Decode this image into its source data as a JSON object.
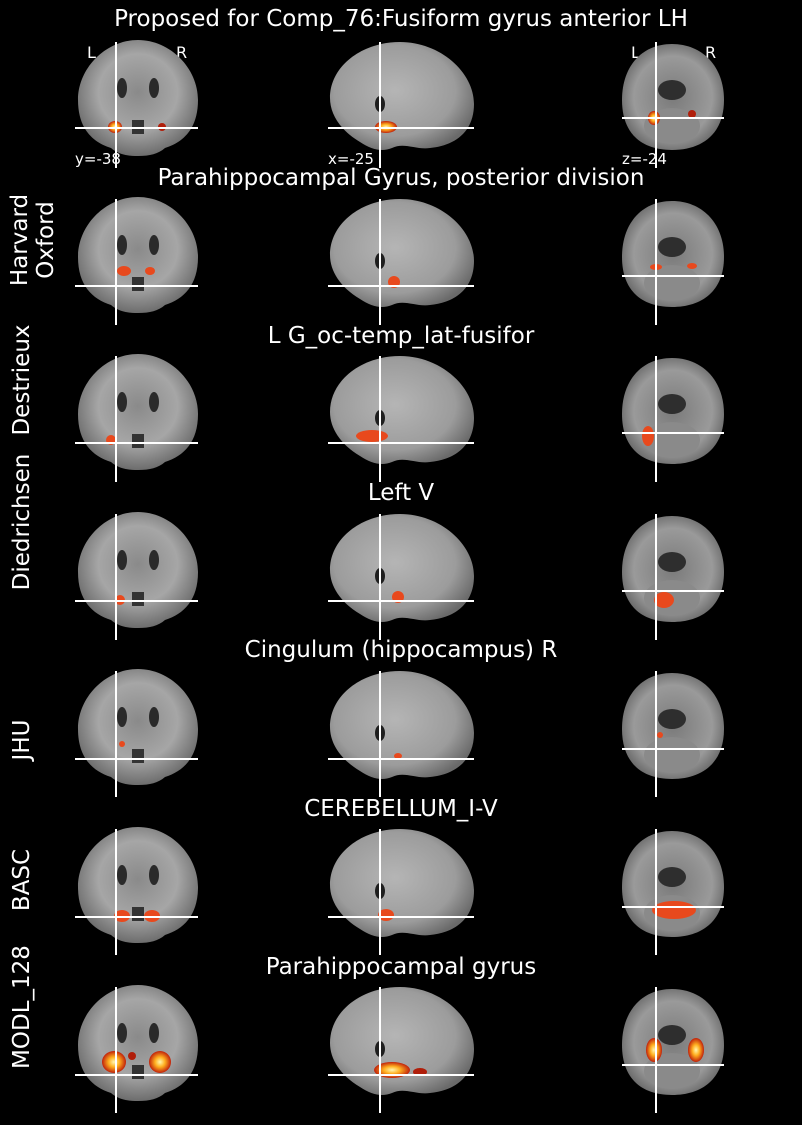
{
  "main_title": "Proposed for Comp_76:Fusiform gyrus anterior LH",
  "orientation": {
    "left": "L",
    "right": "R"
  },
  "coords": {
    "coronal": "y=-38",
    "sagittal": "x=-25",
    "axial": "z=-24"
  },
  "rows": [
    {
      "atlas": "",
      "region": ""
    },
    {
      "atlas": "Harvard Oxford",
      "atlas_line1": "Harvard",
      "atlas_line2": "Oxford",
      "region": "Parahippocampal Gyrus, posterior division"
    },
    {
      "atlas": "Destrieux",
      "region": "L G_oc-temp_lat-fusifor"
    },
    {
      "atlas": "Diedrichsen",
      "region": "Left V"
    },
    {
      "atlas": "JHU",
      "region": "Cingulum (hippocampus) R"
    },
    {
      "atlas": "BASC",
      "region": "CEREBELLUM_I-V"
    },
    {
      "atlas": "MODL_128",
      "region": "Parahippocampal gyrus"
    }
  ],
  "colors": {
    "background": "#000000",
    "crosshair": "#ffffff",
    "overlay": "#e8491d",
    "overlay_hot": "#ffd23c"
  }
}
